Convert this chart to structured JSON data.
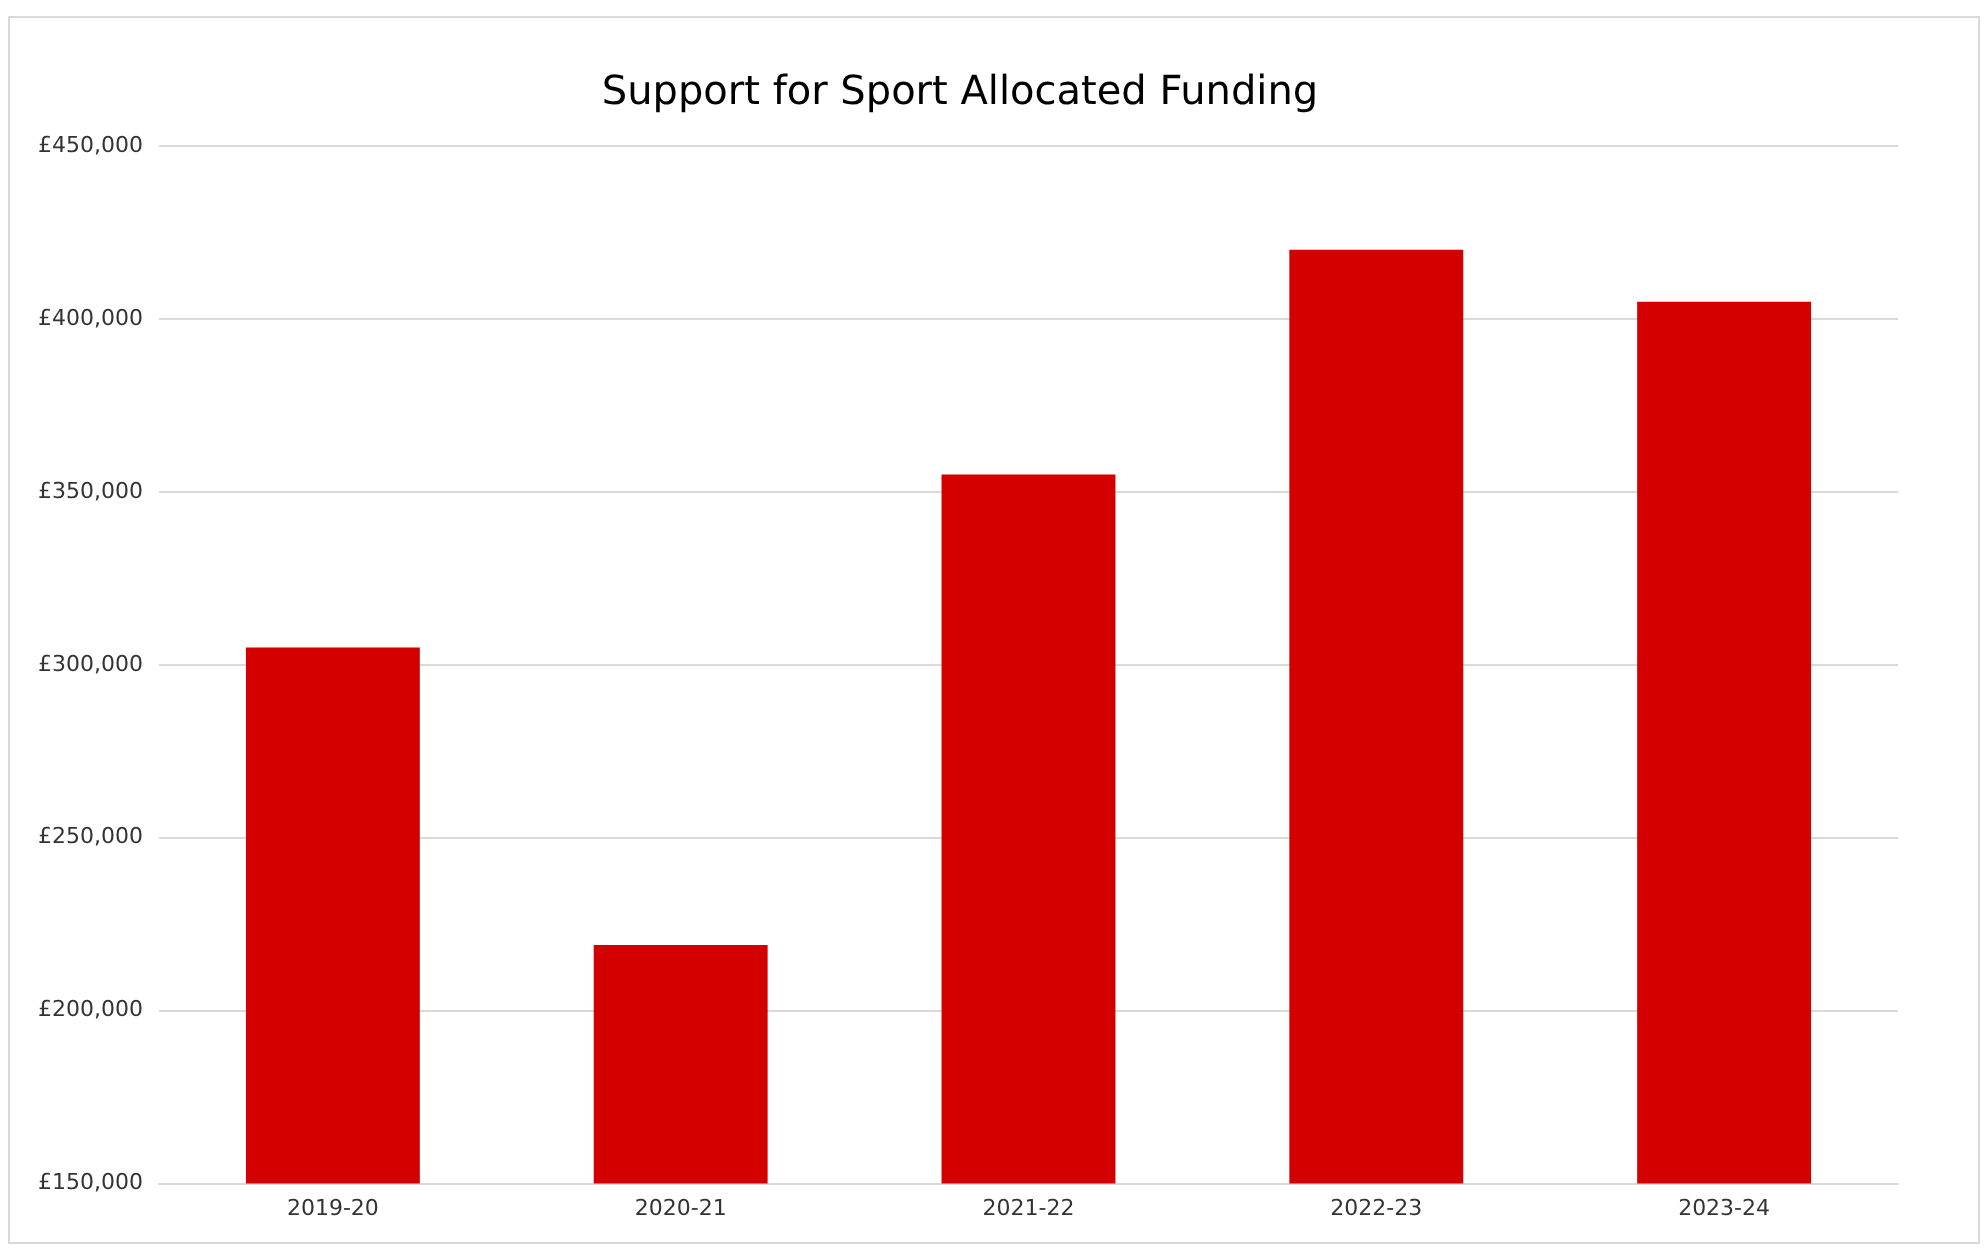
{
  "chart_data": {
    "type": "bar",
    "title": "Support for Sport Allocated Funding",
    "categories": [
      "2019-20",
      "2020-21",
      "2021-22",
      "2022-23",
      "2023-24"
    ],
    "values": [
      305000,
      219000,
      355000,
      420000,
      405000
    ],
    "color": "#d40000",
    "ylim": [
      150000,
      450000
    ],
    "yticks": [
      {
        "value": 150000,
        "label": "£150,000"
      },
      {
        "value": 200000,
        "label": "£200,000"
      },
      {
        "value": 250000,
        "label": "£250,000"
      },
      {
        "value": 300000,
        "label": "£300,000"
      },
      {
        "value": 350000,
        "label": "£350,000"
      },
      {
        "value": 400000,
        "label": "£400,000"
      },
      {
        "value": 450000,
        "label": "£450,000"
      }
    ],
    "grid": "y"
  }
}
